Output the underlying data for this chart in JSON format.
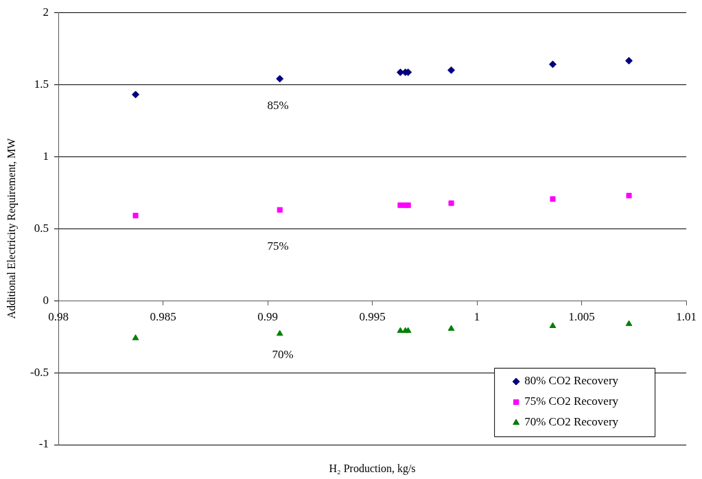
{
  "chart_data": {
    "type": "scatter",
    "xlabel": "H₂ Production, kg/s",
    "ylabel": "Additional Electricity Requirement, MW",
    "xlim": [
      0.98,
      1.01
    ],
    "xticks": [
      0.98,
      0.985,
      0.99,
      0.995,
      1,
      1.005,
      1.01
    ],
    "ylim": [
      -1,
      2
    ],
    "yticks": [
      -1,
      -0.5,
      0,
      0.5,
      1,
      1.5,
      2
    ],
    "grid": "y",
    "legend": "bottom right",
    "series": [
      {
        "name": "80% CO2 Recovery",
        "color": "#000080",
        "marker": "diamond",
        "x": [
          0.98369,
          0.99058,
          0.99634,
          0.99658,
          0.99671,
          0.99877,
          1.00362,
          1.00726
        ],
        "values": [
          1.43,
          1.54,
          1.585,
          1.585,
          1.585,
          1.6,
          1.64,
          1.665
        ]
      },
      {
        "name": "75% CO2 Recovery",
        "color": "#ff00ff",
        "marker": "square",
        "x": [
          0.98369,
          0.99058,
          0.99634,
          0.99658,
          0.99671,
          0.99877,
          1.00362,
          1.00726
        ],
        "values": [
          0.59,
          0.63,
          0.662,
          0.662,
          0.662,
          0.676,
          0.705,
          0.729
        ]
      },
      {
        "name": "70% CO2 Recovery",
        "color": "#008000",
        "marker": "triangle",
        "x": [
          0.98369,
          0.99058,
          0.99634,
          0.99658,
          0.99671,
          0.99877,
          1.00362,
          1.00726
        ],
        "values": [
          -0.26,
          -0.23,
          -0.21,
          -0.21,
          -0.21,
          -0.195,
          -0.176,
          -0.162
        ]
      }
    ],
    "annotations": [
      "85%",
      "75%",
      "70%"
    ]
  }
}
